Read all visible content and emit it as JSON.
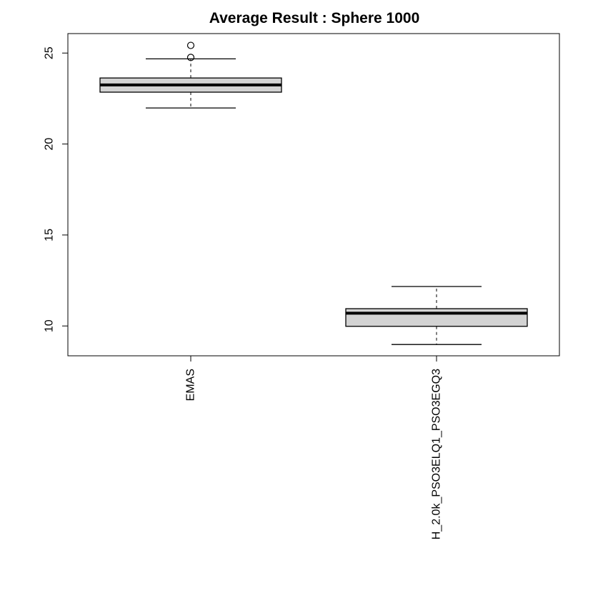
{
  "chart_data": {
    "type": "boxplot",
    "title": "Average Result : Sphere 1000",
    "xlabel": "",
    "ylabel": "",
    "categories": [
      "EMAS",
      "H_2.0k_PSO3ELQ1_PSO3EGQ3"
    ],
    "boxes": [
      {
        "name": "EMAS",
        "whisker_low": 21.98,
        "q1": 22.85,
        "median": 23.25,
        "q3": 23.63,
        "whisker_high": 24.68,
        "outliers": [
          24.76,
          25.42
        ]
      },
      {
        "name": "H_2.0k_PSO3ELQ1_PSO3EGQ3",
        "whisker_low": 8.98,
        "q1": 9.98,
        "median": 10.7,
        "q3": 10.95,
        "whisker_high": 12.17,
        "outliers": []
      }
    ],
    "yticks": [
      10,
      15,
      20,
      25
    ],
    "ylim": [
      8.36,
      26.07
    ],
    "grid": false,
    "legend": "none",
    "colors": {
      "box_fill": "#d3d3d3",
      "stroke": "#000000"
    }
  }
}
